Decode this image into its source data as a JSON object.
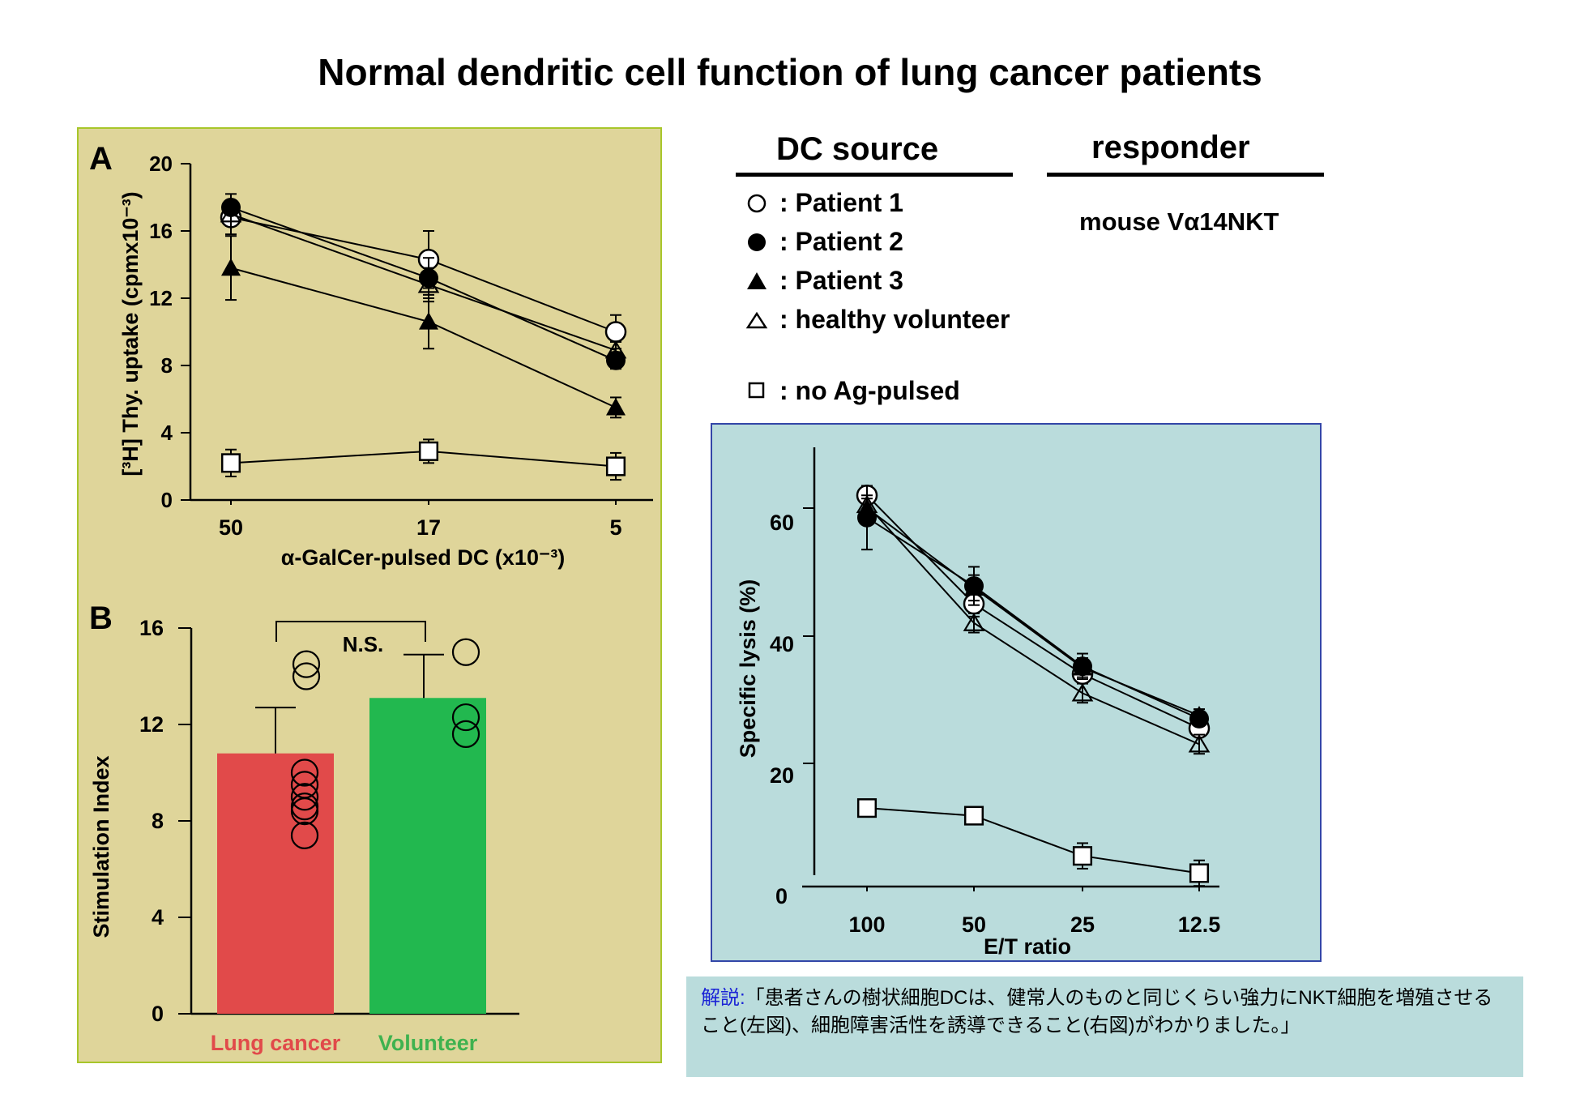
{
  "title": "Normal dendritic cell function of lung cancer patients",
  "legend": {
    "dc_source_header": "DC source",
    "responder_header": "responder",
    "responder_value": "mouse Vα14NKT",
    "items": [
      {
        "symbol": "open-circle",
        "label": ": Patient 1"
      },
      {
        "symbol": "filled-circle",
        "label": ": Patient 2"
      },
      {
        "symbol": "filled-triangle",
        "label": ": Patient 3"
      },
      {
        "symbol": "open-triangle",
        "label": ": healthy volunteer"
      },
      {
        "symbol": "open-square",
        "label": ": no Ag-pulsed"
      }
    ]
  },
  "note": {
    "prefix": "解説:",
    "text": "「患者さんの樹状細胞DCは、健常人のものと同じくらい強力にNKT細胞を増殖させること(左図)、細胞障害活性を誘導できること(右図)がわかりました。」"
  },
  "colors": {
    "left_panel_bg": "#dfd59a",
    "right_panel_bg": "#badcdc",
    "lung_cancer_bar": "#e14a4a",
    "volunteer_bar": "#22b84f",
    "lung_cancer_label": "#e14a4a",
    "volunteer_label": "#3fb24f"
  },
  "chart_data": [
    {
      "id": "A",
      "type": "line",
      "panel_label": "A",
      "ylabel": "[³H] Thy. uptake (cpmx10⁻³)",
      "xlabel": "α-GalCer-pulsed DC (x10⁻³)",
      "categories": [
        "50",
        "17",
        "5"
      ],
      "ylim": [
        0,
        20
      ],
      "yticks": [
        "0",
        "4",
        "8",
        "12",
        "16",
        "20"
      ],
      "series": [
        {
          "name": "Patient 1",
          "marker": "open-circle",
          "values": [
            16.8,
            14.3,
            10.0
          ],
          "err": [
            0.5,
            1.7,
            1.0
          ]
        },
        {
          "name": "Patient 2",
          "marker": "filled-circle",
          "values": [
            17.4,
            13.2,
            8.3
          ],
          "err": [
            0.4,
            1.2,
            0.5
          ]
        },
        {
          "name": "Patient 3",
          "marker": "filled-triangle",
          "values": [
            13.8,
            10.6,
            5.5
          ],
          "err": [
            1.9,
            1.6,
            0.6
          ]
        },
        {
          "name": "healthy volunteer",
          "marker": "open-triangle",
          "values": [
            17.0,
            12.8,
            8.9
          ],
          "err": [
            1.2,
            1.0,
            0.5
          ]
        },
        {
          "name": "no Ag-pulsed",
          "marker": "open-square",
          "values": [
            2.2,
            2.9,
            2.0
          ],
          "err": [
            0.8,
            0.7,
            0.8
          ]
        }
      ]
    },
    {
      "id": "B",
      "type": "bar",
      "panel_label": "B",
      "ylabel": "Stimulation Index",
      "categories": [
        "Lung cancer",
        "Volunteer"
      ],
      "values": [
        10.8,
        13.1
      ],
      "err": [
        1.9,
        1.8
      ],
      "points": [
        [
          14.5,
          14.0,
          10.0,
          9.5,
          9.0,
          8.6,
          8.4,
          7.4
        ],
        [
          15.0,
          12.3,
          11.6
        ]
      ],
      "ylim": [
        0,
        16
      ],
      "yticks": [
        "0",
        "4",
        "8",
        "12",
        "16"
      ],
      "annotation": "N.S."
    },
    {
      "id": "C",
      "type": "line",
      "ylabel": "Specific lysis (%)",
      "xlabel": "E/T ratio",
      "categories": [
        "100",
        "50",
        "25",
        "12.5"
      ],
      "ylim": [
        0,
        68
      ],
      "yticks": [
        "0",
        "20",
        "40",
        "60"
      ],
      "series": [
        {
          "name": "Patient 1",
          "marker": "open-circle",
          "values": [
            62.0,
            45.0,
            34.0,
            25.5
          ],
          "err": [
            1.0,
            2.0,
            1.5,
            1.0
          ]
        },
        {
          "name": "Patient 2",
          "marker": "filled-circle",
          "values": [
            58.5,
            47.8,
            35.2,
            27.0
          ],
          "err": [
            5.0,
            3.0,
            2.0,
            1.0
          ]
        },
        {
          "name": "Patient 3",
          "marker": "filled-triangle",
          "values": [
            60.0,
            47.5,
            35.0,
            27.5
          ],
          "err": [
            1.5,
            2.0,
            1.5,
            1.0
          ]
        },
        {
          "name": "healthy volunteer",
          "marker": "open-triangle",
          "values": [
            60.5,
            42.0,
            31.0,
            23.0
          ],
          "err": [
            1.5,
            1.5,
            1.5,
            1.5
          ]
        },
        {
          "name": "no Ag-pulsed",
          "marker": "open-square",
          "values": [
            13.0,
            11.8,
            5.5,
            2.8
          ],
          "err": [
            1.0,
            1.0,
            2.0,
            2.0
          ]
        }
      ]
    }
  ]
}
